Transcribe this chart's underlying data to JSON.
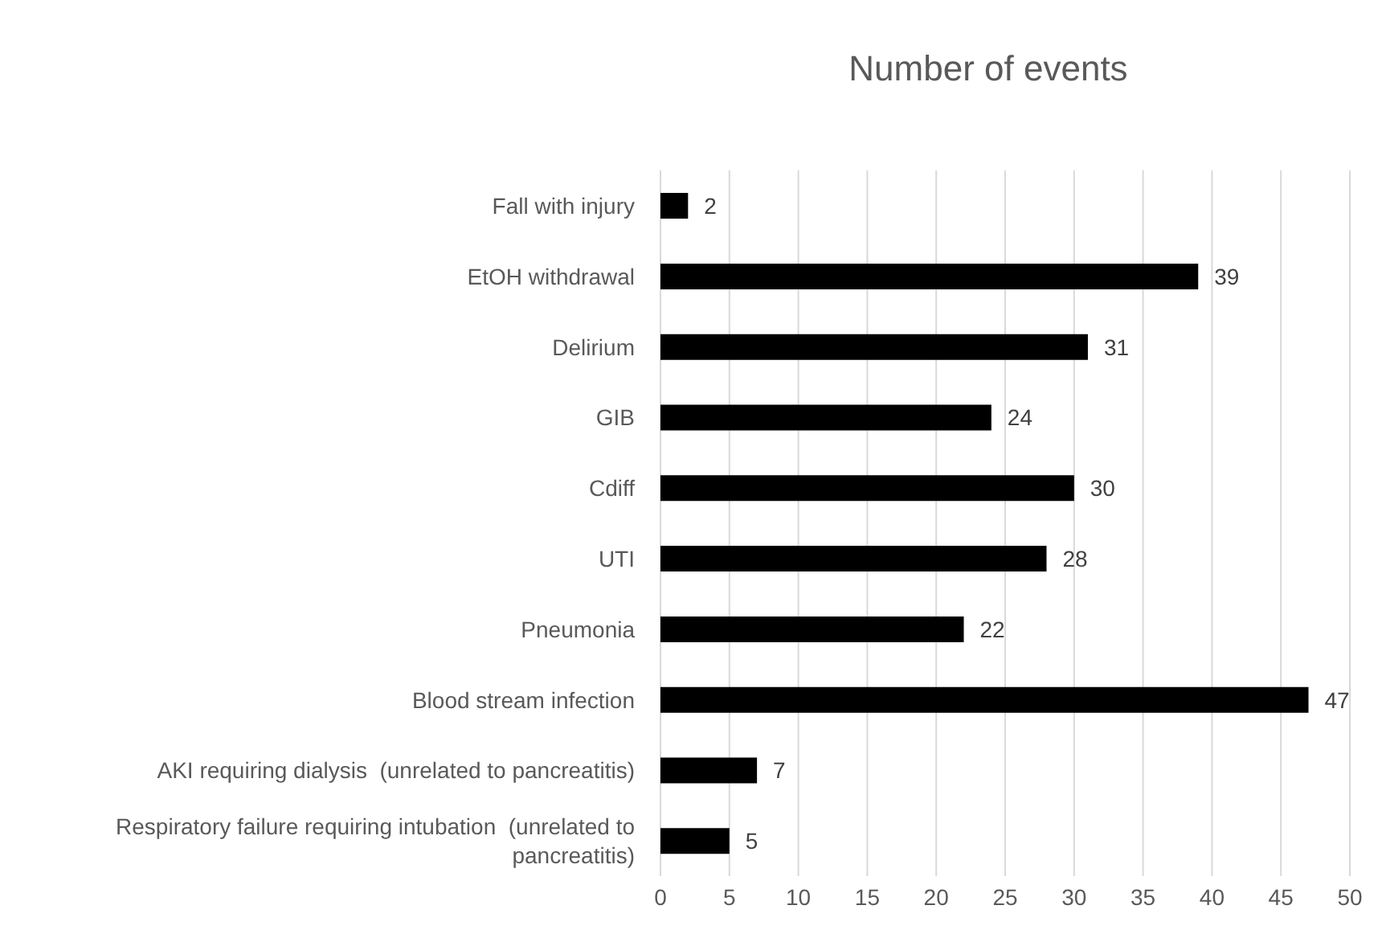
{
  "chart_data": {
    "type": "bar",
    "orientation": "horizontal",
    "title": "Number of events",
    "categories": [
      "Fall with injury",
      "EtOH withdrawal",
      "Delirium",
      "GIB",
      "Cdiff",
      "UTI",
      "Pneumonia",
      "Blood stream infection",
      "AKI requiring dialysis  (unrelated to pancreatitis)",
      "Respiratory failure requiring intubation  (unrelated to pancreatitis)"
    ],
    "values": [
      2,
      39,
      31,
      24,
      30,
      28,
      22,
      47,
      7,
      5
    ],
    "color": "#000000",
    "xlim": [
      0,
      50
    ],
    "xticks": [
      0,
      5,
      10,
      15,
      20,
      25,
      30,
      35,
      40,
      45,
      50
    ],
    "grid": "x",
    "data_labels": true
  }
}
